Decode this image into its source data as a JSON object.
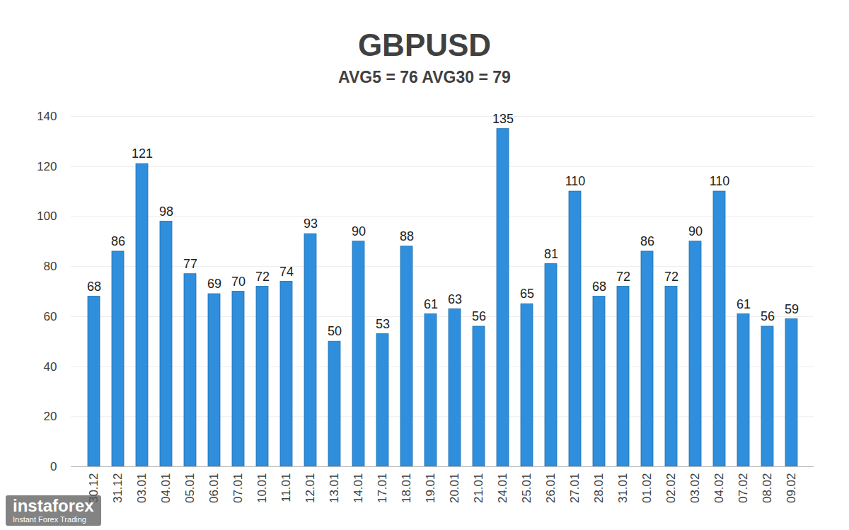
{
  "chart_data": {
    "type": "bar",
    "title": "GBPUSD",
    "subtitle": "AVG5 = 76 AVG30 = 79",
    "categories": [
      "30.12",
      "31.12",
      "03.01",
      "04.01",
      "05.01",
      "06.01",
      "07.01",
      "10.01",
      "11.01",
      "12.01",
      "13.01",
      "14.01",
      "17.01",
      "18.01",
      "19.01",
      "20.01",
      "21.01",
      "24.01",
      "25.01",
      "26.01",
      "27.01",
      "28.01",
      "31.01",
      "01.02",
      "02.02",
      "03.02",
      "04.02",
      "07.02",
      "08.02",
      "09.02"
    ],
    "values": [
      68,
      86,
      121,
      98,
      77,
      69,
      70,
      72,
      74,
      93,
      50,
      90,
      53,
      88,
      61,
      63,
      56,
      135,
      65,
      81,
      110,
      68,
      72,
      86,
      72,
      90,
      110,
      61,
      56,
      59
    ],
    "color": "#2f8fdc",
    "ylim": [
      0,
      140
    ],
    "yticks": [
      0,
      20,
      40,
      60,
      80,
      100,
      120,
      140
    ],
    "grid": true,
    "data_labels": true,
    "annotations": [
      "instaforex",
      "Instant Forex Trading"
    ]
  }
}
